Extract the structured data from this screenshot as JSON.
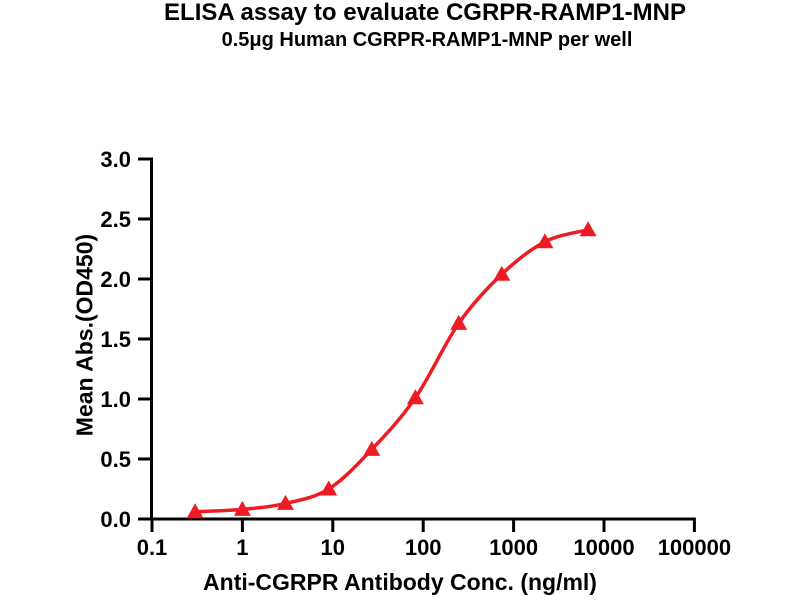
{
  "chart_data": {
    "type": "line",
    "title": "ELISA assay to evaluate CGRPR-RAMP1-MNP",
    "subtitle": "0.5μg Human CGRPR-RAMP1-MNP per well",
    "xlabel": "Anti-CGRPR Antibody Conc. (ng/ml)",
    "ylabel": "Mean Abs.(OD450)",
    "x_scale": "log10",
    "xlim": [
      0.1,
      100000
    ],
    "ylim": [
      0.0,
      3.0
    ],
    "x_ticks": [
      0.1,
      1,
      10,
      100,
      1000,
      10000,
      100000
    ],
    "x_tick_labels": [
      "0.1",
      "1",
      "10",
      "100",
      "1000",
      "10000",
      "100000"
    ],
    "y_ticks": [
      0.0,
      0.5,
      1.0,
      1.5,
      2.0,
      2.5,
      3.0
    ],
    "y_tick_labels": [
      "0.0",
      "0.5",
      "1.0",
      "1.5",
      "2.0",
      "2.5",
      "3.0"
    ],
    "grid": false,
    "legend_position": "none",
    "axis_color": "#000000",
    "series": [
      {
        "marker": "triangle-up",
        "color": "#ed1c24",
        "x": [
          0.3,
          1,
          3,
          9,
          27,
          82,
          247,
          741,
          2222,
          6667
        ],
        "y": [
          0.06,
          0.08,
          0.13,
          0.25,
          0.58,
          1.01,
          1.63,
          2.04,
          2.31,
          2.41
        ]
      }
    ]
  }
}
